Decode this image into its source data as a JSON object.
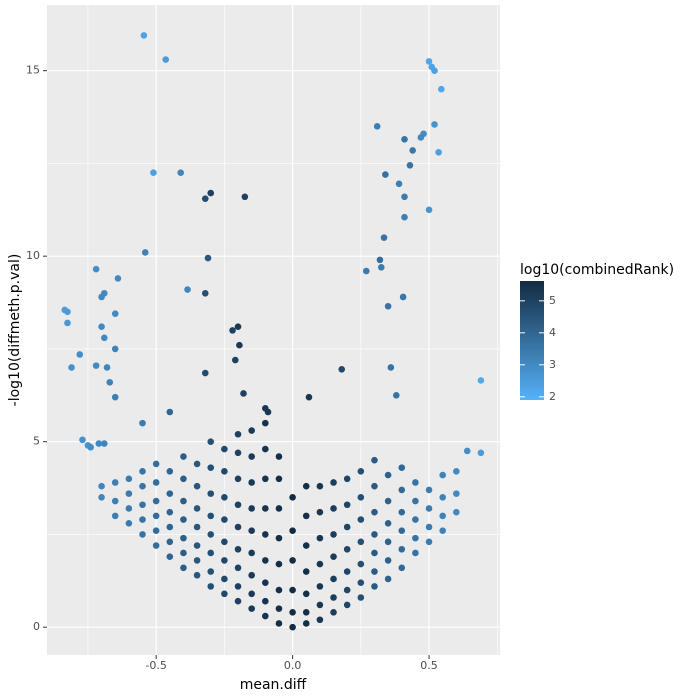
{
  "chart_data": {
    "type": "scatter",
    "x_label": "mean.diff",
    "y_label": "-log10(diffmeth.p.val)",
    "legend_title": "log10(combinedRank)",
    "xlim": [
      -0.9,
      0.76
    ],
    "ylim": [
      -0.75,
      16.77
    ],
    "xticks": [
      -0.5,
      {
        "value": 0,
        "label": "0.0"
      },
      0.5
    ],
    "yticks": [
      0,
      5,
      10,
      15
    ],
    "grid": true,
    "color_lim": [
      1.9,
      5.62
    ],
    "color_ticks": [
      2,
      3,
      4,
      5
    ],
    "low_color": "#56B1F7",
    "high_color": "#132B43",
    "points": [
      [
        -0.545,
        15.95,
        2.3
      ],
      [
        -0.465,
        15.3,
        2.5
      ],
      [
        0.5,
        15.25,
        2.2
      ],
      [
        0.51,
        15.1,
        2.3
      ],
      [
        0.52,
        15.0,
        2.4
      ],
      [
        0.545,
        14.5,
        2.2
      ],
      [
        0.31,
        13.5,
        3.3
      ],
      [
        0.52,
        13.55,
        2.7
      ],
      [
        0.48,
        13.3,
        2.9
      ],
      [
        0.47,
        13.2,
        3.0
      ],
      [
        0.41,
        13.15,
        3.6
      ],
      [
        0.44,
        12.85,
        3.5
      ],
      [
        0.535,
        12.8,
        2.4
      ],
      [
        -0.51,
        12.25,
        2.4
      ],
      [
        -0.41,
        12.25,
        3.1
      ],
      [
        0.34,
        12.2,
        3.7
      ],
      [
        0.43,
        12.45,
        3.6
      ],
      [
        0.39,
        11.95,
        3.3
      ],
      [
        0.41,
        11.6,
        3.4
      ],
      [
        -0.3,
        11.7,
        5.0
      ],
      [
        -0.32,
        11.55,
        4.7
      ],
      [
        -0.175,
        11.6,
        5.0
      ],
      [
        0.5,
        11.25,
        2.7
      ],
      [
        0.41,
        11.05,
        3.3
      ],
      [
        -0.54,
        10.1,
        3.2
      ],
      [
        0.335,
        10.5,
        3.6
      ],
      [
        -0.31,
        9.95,
        4.4
      ],
      [
        0.32,
        9.9,
        3.8
      ],
      [
        0.325,
        9.7,
        3.4
      ],
      [
        0.27,
        9.6,
        3.4
      ],
      [
        -0.72,
        9.65,
        2.9
      ],
      [
        -0.64,
        9.4,
        3.0
      ],
      [
        -0.385,
        9.1,
        3.1
      ],
      [
        -0.69,
        9.0,
        3.0
      ],
      [
        -0.7,
        8.9,
        3.0
      ],
      [
        -0.32,
        9.0,
        4.6
      ],
      [
        0.405,
        8.9,
        3.5
      ],
      [
        0.35,
        8.65,
        3.6
      ],
      [
        -0.825,
        8.5,
        2.5
      ],
      [
        -0.835,
        8.55,
        2.5
      ],
      [
        -0.825,
        8.2,
        2.6
      ],
      [
        -0.65,
        8.45,
        3.0
      ],
      [
        -0.7,
        8.1,
        3.0
      ],
      [
        -0.22,
        8.0,
        5.0
      ],
      [
        -0.2,
        8.1,
        5.2
      ],
      [
        -0.69,
        7.8,
        3.0
      ],
      [
        -0.65,
        7.5,
        3.2
      ],
      [
        -0.195,
        7.6,
        5.2
      ],
      [
        -0.21,
        7.2,
        5.0
      ],
      [
        -0.78,
        7.35,
        2.9
      ],
      [
        -0.81,
        7.0,
        2.8
      ],
      [
        -0.72,
        7.05,
        3.0
      ],
      [
        -0.68,
        7.0,
        3.1
      ],
      [
        0.36,
        7.0,
        3.6
      ],
      [
        0.18,
        6.95,
        4.8
      ],
      [
        -0.32,
        6.85,
        4.7
      ],
      [
        -0.67,
        6.6,
        3.2
      ],
      [
        0.38,
        6.25,
        3.6
      ],
      [
        0.69,
        6.65,
        2.1
      ],
      [
        -0.65,
        6.2,
        3.3
      ],
      [
        -0.18,
        6.3,
        5.0
      ],
      [
        0.06,
        6.2,
        5.3
      ],
      [
        -0.09,
        5.8,
        5.3
      ],
      [
        -0.45,
        5.8,
        4.0
      ],
      [
        -0.55,
        5.5,
        3.4
      ],
      [
        -0.1,
        5.9,
        5.3
      ],
      [
        -0.77,
        5.05,
        2.8
      ],
      [
        -0.75,
        4.9,
        2.8
      ],
      [
        -0.74,
        4.85,
        2.9
      ],
      [
        -0.71,
        4.95,
        3.0
      ],
      [
        -0.69,
        4.95,
        3.1
      ],
      [
        0.69,
        4.7,
        2.5
      ],
      [
        0.64,
        4.75,
        2.9
      ],
      [
        0.6,
        4.2,
        3.0
      ],
      [
        -0.7,
        3.5,
        3.1
      ],
      [
        -0.7,
        3.8,
        3.1
      ],
      [
        -0.65,
        3.0,
        3.3
      ],
      [
        -0.65,
        3.4,
        3.3
      ],
      [
        -0.65,
        3.9,
        3.3
      ],
      [
        -0.6,
        2.8,
        3.4
      ],
      [
        -0.6,
        3.2,
        3.4
      ],
      [
        -0.6,
        3.6,
        3.4
      ],
      [
        -0.6,
        4.0,
        3.4
      ],
      [
        -0.55,
        2.5,
        3.6
      ],
      [
        -0.55,
        2.9,
        3.6
      ],
      [
        -0.55,
        3.3,
        3.6
      ],
      [
        -0.55,
        3.8,
        3.6
      ],
      [
        -0.55,
        4.2,
        3.6
      ],
      [
        -0.5,
        2.2,
        3.8
      ],
      [
        -0.5,
        2.6,
        3.8
      ],
      [
        -0.5,
        3.0,
        3.8
      ],
      [
        -0.5,
        3.4,
        3.8
      ],
      [
        -0.5,
        3.9,
        3.8
      ],
      [
        -0.5,
        4.4,
        3.8
      ],
      [
        -0.45,
        1.9,
        4.0
      ],
      [
        -0.45,
        2.3,
        4.0
      ],
      [
        -0.45,
        2.7,
        4.0
      ],
      [
        -0.45,
        3.1,
        4.0
      ],
      [
        -0.45,
        3.6,
        4.0
      ],
      [
        -0.45,
        4.2,
        4.0
      ],
      [
        -0.4,
        1.6,
        4.2
      ],
      [
        -0.4,
        2.0,
        4.2
      ],
      [
        -0.4,
        2.4,
        4.2
      ],
      [
        -0.4,
        2.9,
        4.2
      ],
      [
        -0.4,
        3.4,
        4.2
      ],
      [
        -0.4,
        4.0,
        4.2
      ],
      [
        -0.4,
        4.6,
        4.2
      ],
      [
        -0.35,
        1.4,
        4.4
      ],
      [
        -0.35,
        1.8,
        4.4
      ],
      [
        -0.35,
        2.2,
        4.4
      ],
      [
        -0.35,
        2.7,
        4.4
      ],
      [
        -0.35,
        3.2,
        4.4
      ],
      [
        -0.35,
        3.8,
        4.4
      ],
      [
        -0.35,
        4.4,
        4.4
      ],
      [
        -0.3,
        1.1,
        4.6
      ],
      [
        -0.3,
        1.5,
        4.6
      ],
      [
        -0.3,
        2.0,
        4.6
      ],
      [
        -0.3,
        2.5,
        4.6
      ],
      [
        -0.3,
        3.0,
        4.6
      ],
      [
        -0.3,
        3.6,
        4.6
      ],
      [
        -0.3,
        4.3,
        4.6
      ],
      [
        -0.3,
        5.0,
        4.6
      ],
      [
        -0.25,
        0.9,
        4.8
      ],
      [
        -0.25,
        1.3,
        4.8
      ],
      [
        -0.25,
        1.8,
        4.8
      ],
      [
        -0.25,
        2.3,
        4.8
      ],
      [
        -0.25,
        2.9,
        4.8
      ],
      [
        -0.25,
        3.5,
        4.8
      ],
      [
        -0.25,
        4.2,
        4.8
      ],
      [
        -0.25,
        4.8,
        4.8
      ],
      [
        -0.2,
        0.7,
        5.0
      ],
      [
        -0.2,
        1.1,
        5.0
      ],
      [
        -0.2,
        1.6,
        5.0
      ],
      [
        -0.2,
        2.1,
        5.0
      ],
      [
        -0.2,
        2.7,
        5.0
      ],
      [
        -0.2,
        3.3,
        5.0
      ],
      [
        -0.2,
        4.0,
        5.0
      ],
      [
        -0.2,
        4.7,
        5.0
      ],
      [
        -0.2,
        5.2,
        5.0
      ],
      [
        -0.15,
        0.5,
        5.2
      ],
      [
        -0.15,
        0.9,
        5.2
      ],
      [
        -0.15,
        1.4,
        5.2
      ],
      [
        -0.15,
        2.0,
        5.2
      ],
      [
        -0.15,
        2.6,
        5.2
      ],
      [
        -0.15,
        3.2,
        5.2
      ],
      [
        -0.15,
        3.9,
        5.2
      ],
      [
        -0.15,
        4.6,
        5.2
      ],
      [
        -0.15,
        5.3,
        5.2
      ],
      [
        -0.1,
        0.3,
        5.4
      ],
      [
        -0.1,
        0.7,
        5.4
      ],
      [
        -0.1,
        1.2,
        5.4
      ],
      [
        -0.1,
        1.8,
        5.4
      ],
      [
        -0.1,
        2.5,
        5.4
      ],
      [
        -0.1,
        3.2,
        5.4
      ],
      [
        -0.1,
        4.0,
        5.4
      ],
      [
        -0.1,
        4.8,
        5.4
      ],
      [
        -0.1,
        5.5,
        5.4
      ],
      [
        -0.05,
        0.1,
        5.5
      ],
      [
        -0.05,
        0.5,
        5.5
      ],
      [
        -0.05,
        1.0,
        5.5
      ],
      [
        -0.05,
        1.7,
        5.5
      ],
      [
        -0.05,
        2.4,
        5.5
      ],
      [
        -0.05,
        3.2,
        5.5
      ],
      [
        -0.05,
        4.0,
        5.5
      ],
      [
        -0.05,
        4.6,
        5.5
      ],
      [
        0,
        0.0,
        5.6
      ],
      [
        0,
        0.4,
        5.6
      ],
      [
        0,
        1.0,
        5.6
      ],
      [
        0,
        1.8,
        5.6
      ],
      [
        0,
        2.6,
        5.6
      ],
      [
        0,
        3.5,
        5.6
      ],
      [
        0.05,
        0.1,
        5.5
      ],
      [
        0.05,
        0.4,
        5.5
      ],
      [
        0.05,
        0.9,
        5.5
      ],
      [
        0.05,
        1.5,
        5.5
      ],
      [
        0.05,
        2.2,
        5.5
      ],
      [
        0.05,
        3.0,
        5.5
      ],
      [
        0.05,
        3.8,
        5.5
      ],
      [
        0.1,
        0.2,
        5.3
      ],
      [
        0.1,
        0.6,
        5.3
      ],
      [
        0.1,
        1.1,
        5.3
      ],
      [
        0.1,
        1.7,
        5.3
      ],
      [
        0.1,
        2.4,
        5.3
      ],
      [
        0.1,
        3.1,
        5.3
      ],
      [
        0.1,
        3.8,
        5.3
      ],
      [
        0.15,
        0.4,
        5.1
      ],
      [
        0.15,
        0.8,
        5.1
      ],
      [
        0.15,
        1.3,
        5.1
      ],
      [
        0.15,
        1.9,
        5.1
      ],
      [
        0.15,
        2.5,
        5.1
      ],
      [
        0.15,
        3.2,
        5.1
      ],
      [
        0.15,
        3.9,
        5.1
      ],
      [
        0.2,
        0.6,
        4.9
      ],
      [
        0.2,
        1.0,
        4.9
      ],
      [
        0.2,
        1.5,
        4.9
      ],
      [
        0.2,
        2.1,
        4.9
      ],
      [
        0.2,
        2.7,
        4.9
      ],
      [
        0.2,
        3.3,
        4.9
      ],
      [
        0.2,
        4.0,
        4.9
      ],
      [
        0.25,
        0.8,
        4.6
      ],
      [
        0.25,
        1.2,
        4.6
      ],
      [
        0.25,
        1.7,
        4.6
      ],
      [
        0.25,
        2.3,
        4.6
      ],
      [
        0.25,
        2.9,
        4.6
      ],
      [
        0.25,
        3.5,
        4.6
      ],
      [
        0.25,
        4.2,
        4.6
      ],
      [
        0.3,
        1.1,
        4.3
      ],
      [
        0.3,
        1.5,
        4.3
      ],
      [
        0.3,
        2.0,
        4.3
      ],
      [
        0.3,
        2.5,
        4.3
      ],
      [
        0.3,
        3.1,
        4.3
      ],
      [
        0.3,
        3.8,
        4.3
      ],
      [
        0.3,
        4.5,
        4.3
      ],
      [
        0.35,
        1.3,
        4.1
      ],
      [
        0.35,
        1.8,
        4.1
      ],
      [
        0.35,
        2.3,
        4.1
      ],
      [
        0.35,
        2.8,
        4.1
      ],
      [
        0.35,
        3.4,
        4.1
      ],
      [
        0.35,
        4.1,
        4.1
      ],
      [
        0.4,
        1.6,
        3.9
      ],
      [
        0.4,
        2.1,
        3.9
      ],
      [
        0.4,
        2.6,
        3.9
      ],
      [
        0.4,
        3.1,
        3.9
      ],
      [
        0.4,
        3.7,
        3.9
      ],
      [
        0.4,
        4.3,
        3.9
      ],
      [
        0.45,
        2.0,
        3.6
      ],
      [
        0.45,
        2.4,
        3.6
      ],
      [
        0.45,
        2.9,
        3.6
      ],
      [
        0.45,
        3.4,
        3.6
      ],
      [
        0.45,
        3.9,
        3.6
      ],
      [
        0.5,
        2.3,
        3.4
      ],
      [
        0.5,
        2.7,
        3.4
      ],
      [
        0.5,
        3.2,
        3.4
      ],
      [
        0.5,
        3.7,
        3.4
      ],
      [
        0.55,
        2.6,
        3.2
      ],
      [
        0.55,
        3.0,
        3.2
      ],
      [
        0.55,
        3.5,
        3.2
      ],
      [
        0.55,
        4.1,
        3.2
      ],
      [
        0.6,
        3.1,
        3.0
      ],
      [
        0.6,
        3.6,
        3.0
      ]
    ]
  }
}
